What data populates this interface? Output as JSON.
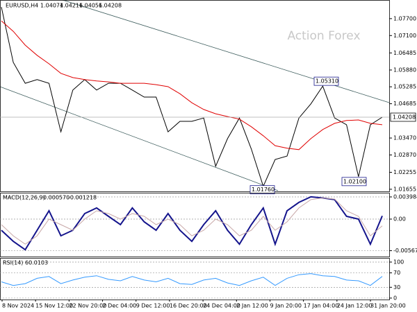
{
  "chart_data": [
    {
      "type": "line",
      "symbol": "EURUSD,H4",
      "ohlc": [
        1.04074,
        1.04216,
        1.04056,
        1.04208
      ],
      "watermark": "Action Forex",
      "ylim": [
        1.0158,
        1.0836
      ],
      "yticks": [
        {
          "value": 1.077,
          "label": "1.07700"
        },
        {
          "value": 1.071,
          "label": "1.07100"
        },
        1.06485,
        {
          "value": 1.0588,
          "label": "1.05880"
        },
        1.05285,
        1.04685,
        {
          "value": 1.0347,
          "label": "1.03470"
        },
        {
          "value": 1.0287,
          "label": "1.02870"
        },
        1.02255,
        1.01655
      ],
      "grid": false,
      "series": [
        {
          "name": "EURUSD",
          "color": "#000000",
          "values": [
            1.0811,
            1.0615,
            1.0541,
            1.0554,
            1.0541,
            1.0369,
            1.0517,
            1.0554,
            1.0517,
            1.0541,
            1.0541,
            1.0517,
            1.0492,
            1.0492,
            1.0369,
            1.0406,
            1.0406,
            1.0418,
            1.0247,
            1.0345,
            1.0418,
            1.0308,
            1.0176,
            1.0271,
            1.0283,
            1.0418,
            1.0468,
            1.0531,
            1.0418,
            1.0394,
            1.021,
            1.0394,
            1.04208
          ]
        },
        {
          "name": "MA",
          "color": "#e00000",
          "values": [
            1.0762,
            1.0725,
            1.0676,
            1.064,
            1.061,
            1.0576,
            1.0561,
            1.0554,
            1.0549,
            1.0546,
            1.0541,
            1.0541,
            1.0541,
            1.0536,
            1.0529,
            1.0504,
            1.0472,
            1.0448,
            1.0433,
            1.0423,
            1.0414,
            1.0387,
            1.0355,
            1.032,
            1.0311,
            1.0306,
            1.0345,
            1.0377,
            1.0399,
            1.0409,
            1.0411,
            1.0399,
            1.0394
          ]
        }
      ],
      "annotations": [
        {
          "value": 1.0531,
          "label": "1.05310"
        },
        {
          "value": 1.021,
          "label": "1.02100"
        },
        {
          "value": 1.0176,
          "label": "1.01760"
        }
      ]
    },
    {
      "type": "line",
      "name": "MACD(12,26,9)",
      "header_values": [
        0.00057,
        -0.001218
      ],
      "value_labels": [
        "0.000570",
        "-0.001218"
      ],
      "ylim": [
        -0.00672,
        0.00473
      ],
      "yticks": [
        0.003984,
        {
          "value": 0,
          "label": "0.00"
        },
        -0.00567
      ],
      "grid": "dashed",
      "series": [
        {
          "name": "MACD",
          "color": "#14148c",
          "values": [
            -0.002,
            -0.004,
            -0.0055,
            -0.002,
            0.0015,
            -0.003,
            -0.002,
            0.001,
            0.002,
            0.0005,
            -0.001,
            0.002,
            -0.0005,
            -0.002,
            0.001,
            -0.002,
            -0.004,
            -0.001,
            0.0015,
            -0.002,
            -0.0045,
            -0.001,
            0.002,
            -0.0045,
            0.0015,
            0.003,
            0.004,
            0.0038,
            0.0035,
            0.0005,
            0,
            -0.0045,
            0.00057
          ]
        },
        {
          "name": "Signal",
          "color": "#c8a8a8",
          "values": [
            -0.001,
            -0.003,
            -0.0045,
            -0.003,
            0,
            -0.001,
            -0.002,
            0,
            0.0015,
            0.001,
            0,
            0.001,
            0.0005,
            -0.001,
            0,
            -0.001,
            -0.003,
            -0.002,
            0,
            -0.001,
            -0.003,
            -0.002,
            0.0005,
            -0.002,
            -0.0005,
            0.002,
            0.0035,
            0.0038,
            0.0036,
            0.0015,
            0.0005,
            -0.003,
            -0.001218
          ]
        }
      ]
    },
    {
      "type": "line",
      "name": "RSI(14)",
      "header_values": [
        60.0103
      ],
      "ylim": [
        -4,
        111.5
      ],
      "yticks": [
        100,
        70,
        30,
        0
      ],
      "grid": "dashed",
      "series": [
        {
          "name": "RSI",
          "color": "#3399ff",
          "values": [
            45,
            35,
            40,
            55,
            60,
            40,
            50,
            58,
            62,
            52,
            48,
            60,
            50,
            45,
            55,
            40,
            38,
            50,
            55,
            42,
            35,
            48,
            58,
            35,
            55,
            65,
            68,
            62,
            60,
            50,
            48,
            35,
            60.0103
          ]
        }
      ],
      "x_labels": [
        "8 Nov 2024",
        "15 Nov 12:00",
        "22 Nov 20:00",
        "2 Dec 04:00",
        "9 Dec 12:00",
        "16 Dec 20:00",
        "24 Dec 04:00",
        "2 Jan 12:00",
        "9 Jan 20:00",
        "17 Jan 04:00",
        "24 Jan 12:00",
        "31 Jan 20:00"
      ]
    }
  ]
}
